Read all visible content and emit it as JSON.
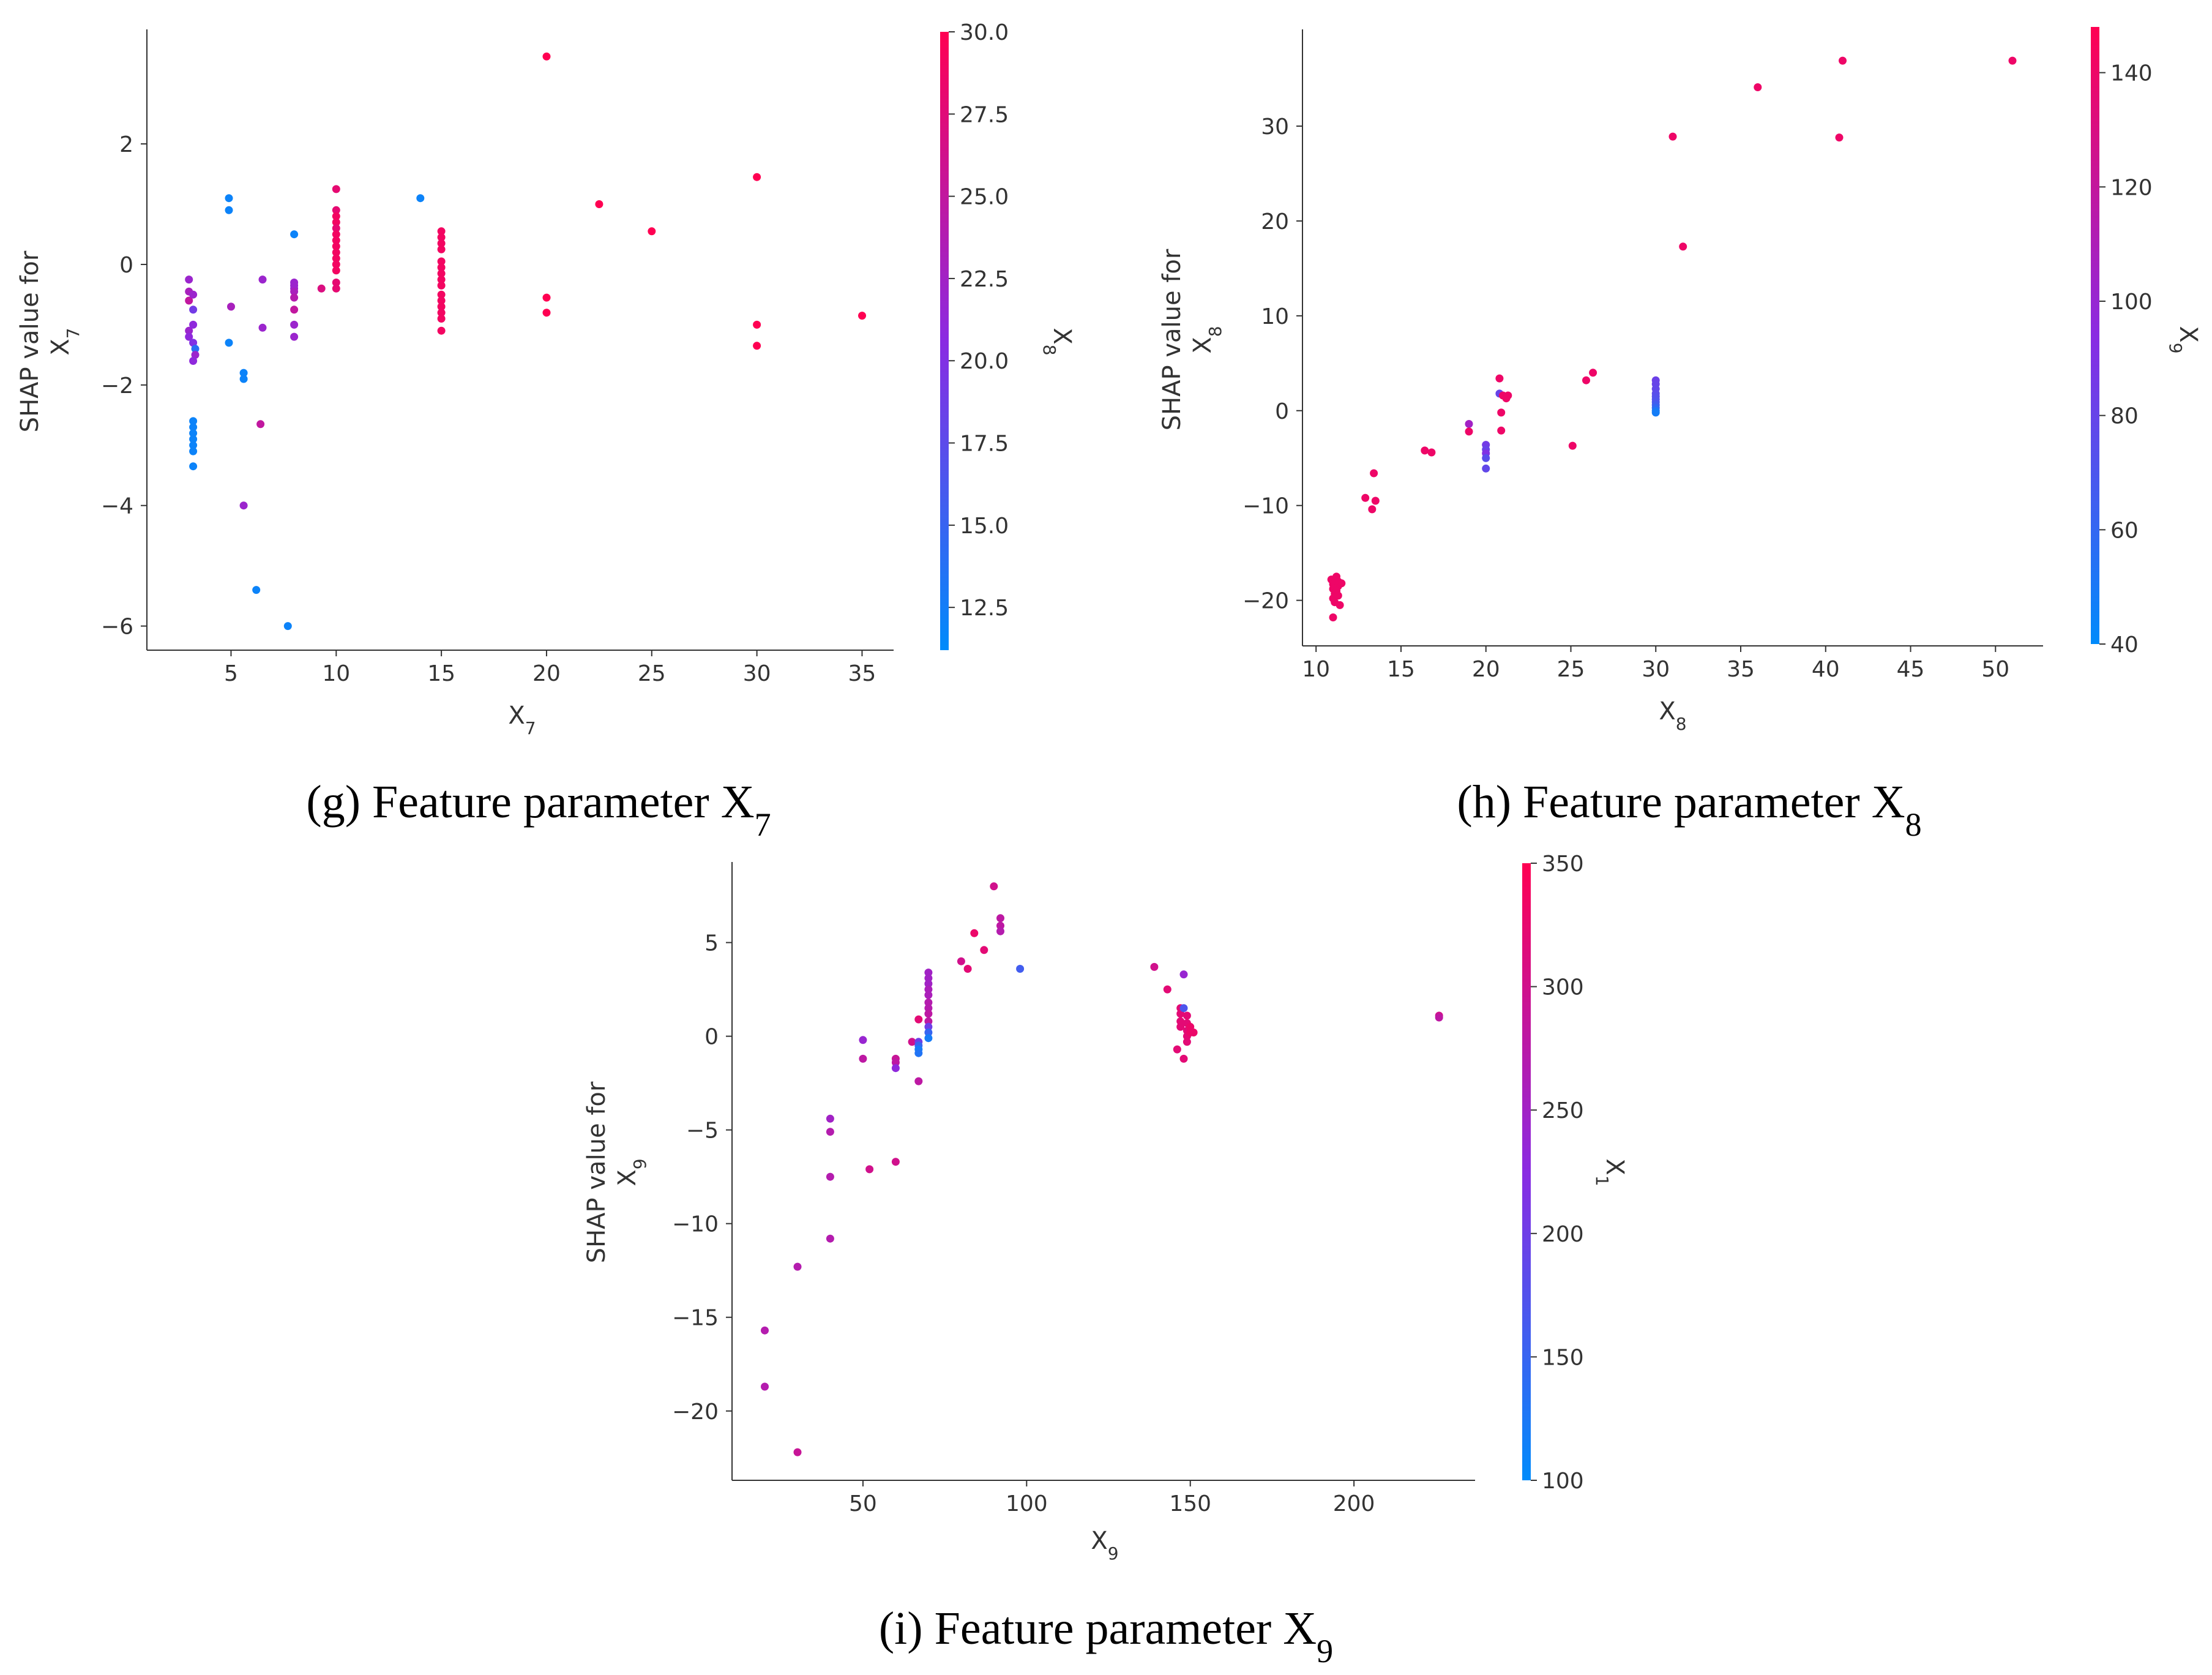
{
  "colors": {
    "blue": "#008bfb",
    "purple": "#8a2be2",
    "red": "#ff0052",
    "axis": "#333333"
  },
  "chart_data": [
    {
      "id": "g",
      "type": "scatter",
      "caption": {
        "prefix": "(g) Feature parameter X",
        "sub": "7"
      },
      "xlabel": {
        "main": "X",
        "sub": "7"
      },
      "ylabel": {
        "line1": "SHAP value for",
        "main": "X",
        "sub": "7"
      },
      "xlim": [
        1,
        36.5
      ],
      "ylim": [
        -6.4,
        3.9
      ],
      "xticks": [
        5,
        10,
        15,
        20,
        25,
        30,
        35
      ],
      "yticks": [
        -6,
        -4,
        -2,
        0,
        2
      ],
      "ytick_labels": [
        "−6",
        "−4",
        "−2",
        "0",
        "2"
      ],
      "colorbar": {
        "label_main": "X",
        "label_sub": "8",
        "min": 11.2,
        "max": 30,
        "ticks": [
          12.5,
          15,
          17.5,
          20,
          22.5,
          25,
          27.5,
          30
        ],
        "tick_labels": [
          "12.5",
          "15.0",
          "17.5",
          "20.0",
          "22.5",
          "25.0",
          "27.5",
          "30.0"
        ]
      },
      "points": [
        [
          3,
          -0.25,
          22
        ],
        [
          3,
          -0.45,
          23
        ],
        [
          3,
          -0.6,
          25
        ],
        [
          3.2,
          -0.5,
          22
        ],
        [
          3.2,
          -0.75,
          19
        ],
        [
          3,
          -1.1,
          22
        ],
        [
          3,
          -1.2,
          21
        ],
        [
          3.2,
          -1.0,
          21
        ],
        [
          3.2,
          -1.3,
          20
        ],
        [
          3.3,
          -1.4,
          14
        ],
        [
          3.3,
          -1.5,
          22
        ],
        [
          3.2,
          -1.6,
          21
        ],
        [
          3.2,
          -2.6,
          12
        ],
        [
          3.2,
          -2.7,
          12
        ],
        [
          3.2,
          -2.8,
          12
        ],
        [
          3.2,
          -2.9,
          12
        ],
        [
          3.2,
          -3.0,
          12
        ],
        [
          3.2,
          -3.1,
          12
        ],
        [
          3.2,
          -3.35,
          12
        ],
        [
          4.9,
          1.1,
          12
        ],
        [
          4.9,
          0.9,
          12
        ],
        [
          4.9,
          -1.3,
          12
        ],
        [
          5,
          -0.7,
          23
        ],
        [
          5.6,
          -1.8,
          12
        ],
        [
          5.6,
          -1.9,
          12
        ],
        [
          5.6,
          -4.0,
          22
        ],
        [
          6.2,
          -5.4,
          12
        ],
        [
          6.4,
          -2.65,
          25
        ],
        [
          6.5,
          -0.25,
          22
        ],
        [
          6.5,
          -1.05,
          22
        ],
        [
          7.7,
          -6.0,
          12
        ],
        [
          8,
          0.5,
          12
        ],
        [
          8,
          -0.3,
          22
        ],
        [
          8,
          -0.35,
          22
        ],
        [
          8,
          -0.4,
          22
        ],
        [
          8,
          -0.45,
          23
        ],
        [
          8,
          -0.55,
          24
        ],
        [
          8,
          -0.75,
          25
        ],
        [
          8,
          -1.0,
          22
        ],
        [
          8,
          -1.2,
          22
        ],
        [
          9.3,
          -0.4,
          27
        ],
        [
          10,
          1.25,
          28
        ],
        [
          10,
          0.9,
          28
        ],
        [
          10,
          0.8,
          29
        ],
        [
          10,
          0.7,
          29
        ],
        [
          10,
          0.6,
          28
        ],
        [
          10,
          0.5,
          29
        ],
        [
          10,
          0.4,
          29
        ],
        [
          10,
          0.3,
          29
        ],
        [
          10,
          0.2,
          29
        ],
        [
          10,
          0.1,
          29
        ],
        [
          10,
          0.0,
          29
        ],
        [
          10,
          -0.1,
          29
        ],
        [
          10,
          -0.3,
          28
        ],
        [
          10,
          -0.4,
          28
        ],
        [
          14,
          1.1,
          12
        ],
        [
          15,
          0.55,
          29
        ],
        [
          15,
          0.45,
          29
        ],
        [
          15,
          0.35,
          29
        ],
        [
          15,
          0.25,
          29
        ],
        [
          15,
          0.05,
          29
        ],
        [
          15,
          -0.05,
          29
        ],
        [
          15,
          -0.15,
          29
        ],
        [
          15,
          -0.25,
          29
        ],
        [
          15,
          -0.35,
          29
        ],
        [
          15,
          -0.5,
          29
        ],
        [
          15,
          -0.6,
          29
        ],
        [
          15,
          -0.7,
          29
        ],
        [
          15,
          -0.8,
          29
        ],
        [
          15,
          -0.9,
          29
        ],
        [
          15,
          -1.1,
          29
        ],
        [
          20,
          3.45,
          30
        ],
        [
          20,
          -0.55,
          30
        ],
        [
          20,
          -0.8,
          30
        ],
        [
          22.5,
          1.0,
          30
        ],
        [
          25,
          0.55,
          30
        ],
        [
          30,
          1.45,
          30
        ],
        [
          30,
          -1.0,
          30
        ],
        [
          30,
          -1.35,
          30
        ],
        [
          35,
          -0.85,
          30
        ]
      ]
    },
    {
      "id": "h",
      "type": "scatter",
      "caption": {
        "prefix": "(h) Feature parameter X",
        "sub": "8"
      },
      "xlabel": {
        "main": "X",
        "sub": "8"
      },
      "ylabel": {
        "line1": "SHAP value for",
        "main": "X",
        "sub": "8"
      },
      "xlim": [
        9.2,
        52.8
      ],
      "ylim": [
        -24.8,
        40.2
      ],
      "xticks": [
        10,
        15,
        20,
        25,
        30,
        35,
        40,
        45,
        50
      ],
      "yticks": [
        -20,
        -10,
        0,
        10,
        20,
        30
      ],
      "ytick_labels": [
        "−20",
        "−10",
        "0",
        "10",
        "20",
        "30"
      ],
      "colorbar": {
        "label_main": "X",
        "label_sub": "9",
        "min": 40,
        "max": 148,
        "ticks": [
          40,
          60,
          80,
          100,
          120,
          140
        ],
        "tick_labels": [
          "40",
          "60",
          "80",
          "100",
          "120",
          "140"
        ]
      },
      "points": [
        [
          10.9,
          -17.8,
          140
        ],
        [
          11,
          -18.3,
          140
        ],
        [
          11,
          -18.8,
          140
        ],
        [
          11.1,
          -19.3,
          140
        ],
        [
          11,
          -19.8,
          140
        ],
        [
          11.1,
          -20.2,
          140
        ],
        [
          11.2,
          -17.5,
          140
        ],
        [
          11.3,
          -18,
          140
        ],
        [
          11.3,
          -18.5,
          140
        ],
        [
          11.2,
          -19,
          140
        ],
        [
          11.3,
          -19.5,
          140
        ],
        [
          11.4,
          -20.5,
          140
        ],
        [
          11.5,
          -18.2,
          140
        ],
        [
          11,
          -21.8,
          140
        ],
        [
          11.2,
          -17.9,
          140
        ],
        [
          12.9,
          -9.2,
          140
        ],
        [
          13.3,
          -10.4,
          140
        ],
        [
          13.4,
          -6.6,
          140
        ],
        [
          13.5,
          -9.5,
          140
        ],
        [
          16.4,
          -4.2,
          140
        ],
        [
          16.8,
          -4.4,
          140
        ],
        [
          19,
          -1.4,
          105
        ],
        [
          19,
          -2.2,
          140
        ],
        [
          20,
          -3.6,
          85
        ],
        [
          20,
          -4.1,
          80
        ],
        [
          20,
          -4.5,
          90
        ],
        [
          20,
          -5.0,
          75
        ],
        [
          20,
          -6.1,
          78
        ],
        [
          20.8,
          3.4,
          140
        ],
        [
          20.8,
          1.8,
          80
        ],
        [
          20.9,
          -0.2,
          140
        ],
        [
          20.9,
          -2.1,
          140
        ],
        [
          21,
          1.6,
          140
        ],
        [
          21.2,
          1.3,
          140
        ],
        [
          21.3,
          1.6,
          140
        ],
        [
          25.1,
          -3.7,
          140
        ],
        [
          25.9,
          3.2,
          140
        ],
        [
          26.3,
          4.0,
          140
        ],
        [
          30,
          3.2,
          82
        ],
        [
          30,
          2.8,
          80
        ],
        [
          30,
          2.3,
          78
        ],
        [
          30,
          1.8,
          76
        ],
        [
          30,
          1.5,
          74
        ],
        [
          30,
          1.2,
          72
        ],
        [
          30,
          0.9,
          70
        ],
        [
          30,
          0.6,
          66
        ],
        [
          30,
          0.3,
          60
        ],
        [
          30,
          0.0,
          52
        ],
        [
          30,
          -0.2,
          48
        ],
        [
          31,
          28.9,
          140
        ],
        [
          31.6,
          17.3,
          140
        ],
        [
          36,
          34.1,
          140
        ],
        [
          40.8,
          28.8,
          140
        ],
        [
          41,
          36.9,
          140
        ],
        [
          51,
          36.9,
          140
        ]
      ]
    },
    {
      "id": "i",
      "type": "scatter",
      "caption": {
        "prefix": "(i) Feature parameter X",
        "sub": "9"
      },
      "xlabel": {
        "main": "X",
        "sub": "9"
      },
      "ylabel": {
        "line1": "SHAP value for",
        "main": "X",
        "sub": "9"
      },
      "xlim": [
        10,
        237
      ],
      "ylim": [
        -23.7,
        9.3
      ],
      "xticks": [
        50,
        100,
        150,
        200
      ],
      "yticks": [
        -20,
        -15,
        -10,
        -5,
        0,
        5
      ],
      "ytick_labels": [
        "−20",
        "−15",
        "−10",
        "−5",
        "0",
        "5"
      ],
      "colorbar": {
        "label_main": "X",
        "label_sub": "1",
        "min": 100,
        "max": 350,
        "ticks": [
          100,
          150,
          200,
          250,
          300,
          350
        ],
        "tick_labels": [
          "100",
          "150",
          "200",
          "250",
          "300",
          "350"
        ]
      },
      "points": [
        [
          20,
          -15.7,
          270
        ],
        [
          20,
          -18.7,
          270
        ],
        [
          30,
          -12.3,
          270
        ],
        [
          30,
          -22.2,
          290
        ],
        [
          40,
          -4.4,
          250
        ],
        [
          40,
          -5.1,
          270
        ],
        [
          40,
          -7.5,
          270
        ],
        [
          40,
          -10.8,
          270
        ],
        [
          50,
          -0.2,
          240
        ],
        [
          50,
          -1.2,
          280
        ],
        [
          52,
          -7.1,
          300
        ],
        [
          60,
          -6.7,
          300
        ],
        [
          60,
          -1.2,
          290
        ],
        [
          60,
          -1.4,
          280
        ],
        [
          60,
          -1.7,
          230
        ],
        [
          65,
          -0.3,
          300
        ],
        [
          67,
          0.9,
          320
        ],
        [
          67,
          -0.3,
          200
        ],
        [
          67,
          -0.5,
          150
        ],
        [
          67,
          -0.7,
          120
        ],
        [
          67,
          -0.9,
          130
        ],
        [
          67,
          -2.4,
          280
        ],
        [
          70,
          3.4,
          250
        ],
        [
          70,
          3.1,
          250
        ],
        [
          70,
          2.8,
          250
        ],
        [
          70,
          2.5,
          260
        ],
        [
          70,
          2.2,
          260
        ],
        [
          70,
          1.8,
          270
        ],
        [
          70,
          1.5,
          270
        ],
        [
          70,
          1.2,
          280
        ],
        [
          70,
          0.8,
          280
        ],
        [
          70,
          0.5,
          200
        ],
        [
          70,
          0.2,
          150
        ],
        [
          70,
          -0.1,
          120
        ],
        [
          80,
          4.0,
          300
        ],
        [
          82,
          3.6,
          320
        ],
        [
          84,
          5.5,
          330
        ],
        [
          87,
          4.6,
          320
        ],
        [
          90,
          8.0,
          300
        ],
        [
          92,
          6.3,
          280
        ],
        [
          92,
          5.9,
          280
        ],
        [
          92,
          5.6,
          270
        ],
        [
          98,
          3.6,
          160
        ],
        [
          139,
          3.7,
          300
        ],
        [
          143,
          2.5,
          320
        ],
        [
          146,
          -0.7,
          320
        ],
        [
          147,
          1.5,
          320
        ],
        [
          147,
          1.2,
          320
        ],
        [
          147,
          0.8,
          320
        ],
        [
          147,
          0.5,
          320
        ],
        [
          148,
          3.3,
          240
        ],
        [
          148,
          1.5,
          170
        ],
        [
          148,
          -1.2,
          320
        ],
        [
          149,
          1.1,
          320
        ],
        [
          149,
          0.7,
          320
        ],
        [
          149,
          0.3,
          320
        ],
        [
          149,
          0.0,
          320
        ],
        [
          149,
          -0.3,
          320
        ],
        [
          150,
          0.5,
          330
        ],
        [
          150,
          0.2,
          330
        ],
        [
          151,
          0.2,
          330
        ],
        [
          226,
          1.1,
          300
        ],
        [
          226,
          1.0,
          280
        ]
      ]
    }
  ]
}
